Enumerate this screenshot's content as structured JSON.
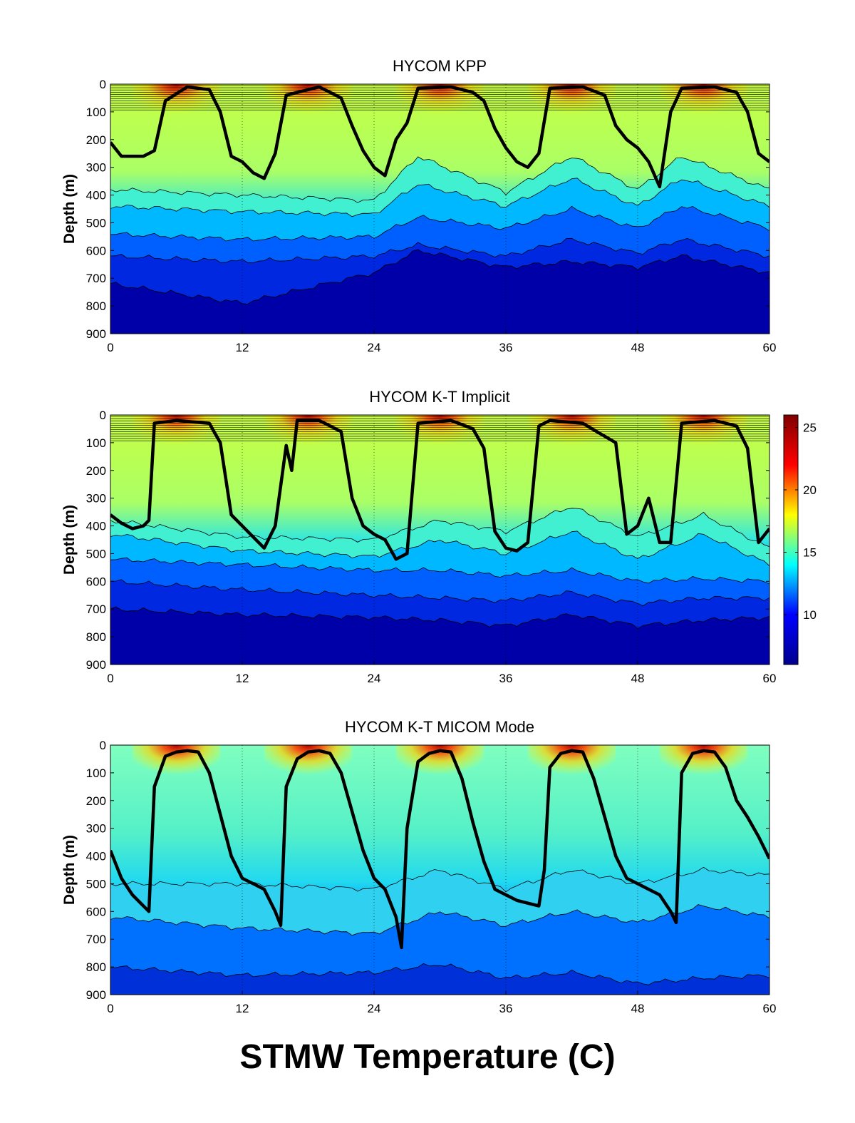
{
  "figure_caption": "STMW Temperature (C)",
  "colormap": [
    "#00008f",
    "#0000ff",
    "#00ffff",
    "#ffff00",
    "#ff0000",
    "#800000"
  ],
  "chart_data": [
    {
      "type": "heatmap",
      "title": "HYCOM KPP",
      "ylabel": "Depth (m)",
      "xlabel": "",
      "xlim": [
        0,
        60
      ],
      "ylim": [
        900,
        0
      ],
      "x_ticks": [
        0,
        12,
        24,
        36,
        48,
        60
      ],
      "y_ticks": [
        0,
        100,
        200,
        300,
        400,
        500,
        600,
        700,
        800,
        900
      ],
      "grid": "dotted vertical lines at x ticks",
      "fixed_layer_depth": 100,
      "summer_maxima_x": [
        6,
        18,
        30,
        42,
        54
      ],
      "mixed_layer_depth": {
        "x": [
          0,
          1,
          2,
          3,
          4,
          5,
          7,
          9,
          10,
          11,
          12,
          13,
          14,
          15,
          16,
          19,
          21,
          22,
          23,
          24,
          25,
          26,
          27,
          28,
          31,
          33,
          34,
          35,
          36,
          37,
          38,
          39,
          40,
          43,
          45,
          46,
          47,
          48,
          49,
          50,
          51,
          52,
          55,
          57,
          58,
          59,
          60
        ],
        "y": [
          210,
          260,
          260,
          260,
          240,
          60,
          10,
          20,
          100,
          260,
          280,
          320,
          340,
          250,
          40,
          10,
          50,
          150,
          240,
          300,
          330,
          200,
          140,
          15,
          10,
          30,
          60,
          160,
          230,
          280,
          300,
          250,
          15,
          10,
          40,
          150,
          200,
          230,
          280,
          370,
          100,
          15,
          10,
          30,
          100,
          250,
          280
        ]
      },
      "isotherm_depths": [
        {
          "temp": 17,
          "x": [
            0,
            12,
            24,
            28,
            36,
            42,
            48,
            52,
            60
          ],
          "y": [
            380,
            400,
            420,
            260,
            390,
            260,
            380,
            260,
            380
          ]
        },
        {
          "temp": 15,
          "x": [
            0,
            12,
            24,
            28,
            36,
            42,
            48,
            52,
            60
          ],
          "y": [
            440,
            460,
            470,
            360,
            440,
            340,
            440,
            340,
            440
          ]
        },
        {
          "temp": 12,
          "x": [
            0,
            12,
            24,
            28,
            36,
            42,
            48,
            52,
            60
          ],
          "y": [
            540,
            560,
            550,
            480,
            520,
            450,
            520,
            440,
            520
          ]
        },
        {
          "temp": 10,
          "x": [
            0,
            12,
            24,
            28,
            36,
            42,
            48,
            52,
            60
          ],
          "y": [
            620,
            640,
            620,
            580,
            620,
            560,
            610,
            560,
            620
          ]
        },
        {
          "temp": 8,
          "x": [
            0,
            12,
            24,
            28,
            36,
            42,
            48,
            52,
            60
          ],
          "y": [
            720,
            790,
            680,
            600,
            660,
            640,
            660,
            620,
            680
          ]
        }
      ]
    },
    {
      "type": "heatmap",
      "title": "HYCOM K-T Implicit",
      "ylabel": "Depth (m)",
      "xlabel": "",
      "xlim": [
        0,
        60
      ],
      "ylim": [
        900,
        0
      ],
      "x_ticks": [
        0,
        12,
        24,
        36,
        48,
        60
      ],
      "y_ticks": [
        0,
        100,
        200,
        300,
        400,
        500,
        600,
        700,
        800,
        900
      ],
      "grid": "dotted vertical lines at x ticks",
      "fixed_layer_depth": 100,
      "summer_maxima_x": [
        6,
        18,
        30,
        42,
        54
      ],
      "mixed_layer_depth": {
        "x": [
          0,
          1,
          2,
          3,
          3.5,
          4,
          6,
          9,
          10,
          11,
          12,
          14,
          15,
          16,
          16.5,
          17,
          19,
          21,
          22,
          23,
          24,
          25,
          26,
          27,
          28,
          31,
          33,
          34,
          35,
          36,
          37,
          38,
          39,
          40,
          43,
          46,
          47,
          48,
          49,
          50,
          51,
          52,
          55,
          57,
          58,
          59,
          60
        ],
        "y": [
          360,
          390,
          410,
          400,
          380,
          30,
          20,
          30,
          100,
          360,
          400,
          480,
          400,
          110,
          200,
          20,
          20,
          60,
          300,
          400,
          430,
          450,
          520,
          500,
          30,
          20,
          50,
          120,
          420,
          480,
          490,
          460,
          40,
          20,
          30,
          100,
          430,
          400,
          300,
          460,
          460,
          30,
          20,
          40,
          120,
          460,
          410
        ]
      },
      "isotherm_depths": [
        {
          "temp": 17,
          "x": [
            0,
            12,
            24,
            30,
            36,
            42,
            48,
            54,
            60
          ],
          "y": [
            380,
            440,
            450,
            380,
            420,
            330,
            440,
            360,
            480
          ]
        },
        {
          "temp": 15,
          "x": [
            0,
            12,
            24,
            30,
            36,
            42,
            48,
            54,
            60
          ],
          "y": [
            430,
            490,
            510,
            450,
            500,
            420,
            520,
            430,
            540
          ]
        },
        {
          "temp": 12,
          "x": [
            0,
            12,
            24,
            30,
            36,
            42,
            48,
            54,
            60
          ],
          "y": [
            520,
            540,
            560,
            560,
            580,
            560,
            600,
            590,
            600
          ]
        },
        {
          "temp": 10,
          "x": [
            0,
            12,
            24,
            30,
            36,
            42,
            48,
            54,
            60
          ],
          "y": [
            600,
            630,
            650,
            660,
            670,
            640,
            680,
            660,
            660
          ]
        },
        {
          "temp": 8,
          "x": [
            0,
            12,
            24,
            30,
            36,
            42,
            48,
            54,
            60
          ],
          "y": [
            700,
            720,
            730,
            740,
            760,
            720,
            760,
            740,
            730
          ]
        }
      ]
    },
    {
      "type": "heatmap",
      "title": "HYCOM K-T MICOM Mode",
      "ylabel": "Depth (m)",
      "xlabel": "",
      "xlim": [
        0,
        60
      ],
      "ylim": [
        900,
        0
      ],
      "x_ticks": [
        0,
        12,
        24,
        36,
        48,
        60
      ],
      "y_ticks": [
        0,
        100,
        200,
        300,
        400,
        500,
        600,
        700,
        800,
        900
      ],
      "grid": "dotted vertical lines at x ticks",
      "fixed_layer_depth": 0,
      "summer_maxima_x": [
        6,
        18,
        30,
        42,
        54
      ],
      "mixed_layer_depth": {
        "x": [
          0,
          1,
          2,
          3,
          3.5,
          4,
          5,
          6,
          7,
          8,
          9,
          10,
          11,
          12,
          13,
          14,
          15,
          15.5,
          16,
          17,
          18,
          19,
          20,
          21,
          22,
          23,
          24,
          25,
          26,
          26.5,
          27,
          28,
          29,
          30,
          31,
          32,
          33,
          34,
          35,
          36,
          37,
          38,
          39,
          39.5,
          40,
          41,
          42,
          43,
          44,
          45,
          46,
          47,
          48,
          49,
          50,
          51,
          51.5,
          52,
          53,
          54,
          55,
          56,
          57,
          58,
          59,
          60
        ],
        "y": [
          380,
          480,
          540,
          580,
          600,
          150,
          40,
          25,
          20,
          25,
          100,
          250,
          400,
          480,
          500,
          520,
          600,
          650,
          150,
          50,
          25,
          20,
          30,
          100,
          240,
          380,
          480,
          520,
          620,
          730,
          300,
          60,
          30,
          20,
          25,
          120,
          280,
          420,
          520,
          540,
          560,
          570,
          580,
          450,
          80,
          30,
          20,
          25,
          120,
          260,
          400,
          480,
          500,
          520,
          540,
          600,
          640,
          100,
          30,
          20,
          25,
          80,
          200,
          260,
          330,
          410
        ]
      },
      "isotherm_depths": [
        {
          "temp": 17,
          "x": [
            0,
            12,
            24,
            30,
            36,
            42,
            48,
            54,
            60
          ],
          "y": [
            500,
            500,
            520,
            450,
            520,
            450,
            500,
            450,
            470
          ]
        },
        {
          "temp": 15,
          "x": [
            0,
            12,
            24,
            30,
            36,
            42,
            48,
            54,
            60
          ],
          "y": [
            620,
            660,
            680,
            600,
            650,
            600,
            640,
            580,
            620
          ]
        },
        {
          "temp": 12,
          "x": [
            0,
            12,
            24,
            30,
            36,
            42,
            48,
            54,
            60
          ],
          "y": [
            800,
            830,
            820,
            790,
            840,
            820,
            860,
            840,
            830
          ]
        }
      ]
    }
  ],
  "colorbar": {
    "vmin": 6,
    "vmax": 26,
    "ticks": [
      10,
      15,
      20,
      25
    ],
    "tick_labels": [
      "10",
      "15",
      "20",
      "25"
    ]
  }
}
